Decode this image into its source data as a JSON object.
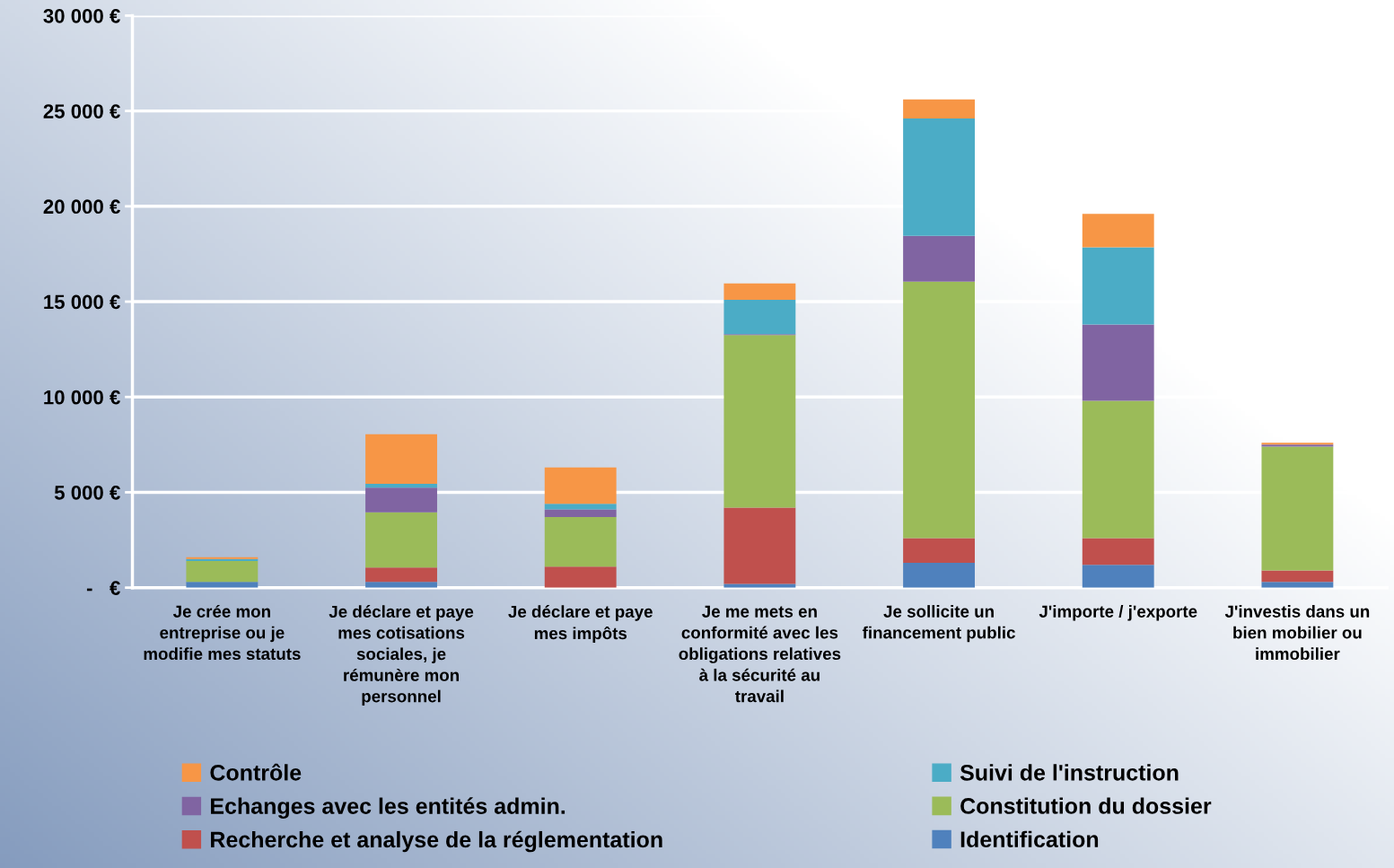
{
  "chart_data": {
    "type": "bar",
    "stacked": true,
    "categories": [
      "Je crée mon\nentreprise ou je\nmodifie mes statuts",
      "Je déclare et paye\nmes cotisations\nsociales, je\nrémunère mon\npersonnel",
      "Je déclare et paye\nmes impôts",
      "Je me mets en\nconformité avec les\nobligations relatives\nà la sécurité au\ntravail",
      "Je sollicite un\nfinancement public",
      "J'importe / j'exporte",
      "J'investis dans un\nbien mobilier ou\nimmobilier"
    ],
    "series": [
      {
        "name": "Identification",
        "color": "#4f81bd",
        "values": [
          300,
          300,
          0,
          200,
          1300,
          1200,
          300
        ]
      },
      {
        "name": "Recherche et analyse de la réglementation",
        "color": "#c0504d",
        "values": [
          0,
          750,
          1100,
          4000,
          1300,
          1400,
          600
        ]
      },
      {
        "name": "Constitution du dossier",
        "color": "#9bbb59",
        "values": [
          1100,
          2900,
          2600,
          9050,
          13450,
          7200,
          6500
        ]
      },
      {
        "name": "Echanges avec les entités admin.",
        "color": "#8064a2",
        "values": [
          0,
          1300,
          400,
          50,
          2400,
          4000,
          100
        ]
      },
      {
        "name": "Suivi de l'instruction",
        "color": "#4bacc6",
        "values": [
          100,
          200,
          300,
          1800,
          6150,
          4050,
          0
        ]
      },
      {
        "name": "Contrôle",
        "color": "#f79646",
        "values": [
          100,
          2600,
          1900,
          850,
          1000,
          1750,
          100
        ]
      }
    ],
    "ylim": [
      0,
      30000
    ],
    "yticks": [
      {
        "value": 0,
        "label": "-   €"
      },
      {
        "value": 5000,
        "label": "5 000 €"
      },
      {
        "value": 10000,
        "label": "10 000 €"
      },
      {
        "value": 15000,
        "label": "15 000 €"
      },
      {
        "value": 20000,
        "label": "20 000 €"
      },
      {
        "value": 25000,
        "label": "25 000 €"
      },
      {
        "value": 30000,
        "label": "30 000 €"
      }
    ],
    "grid": "y",
    "legend": "bottom"
  }
}
